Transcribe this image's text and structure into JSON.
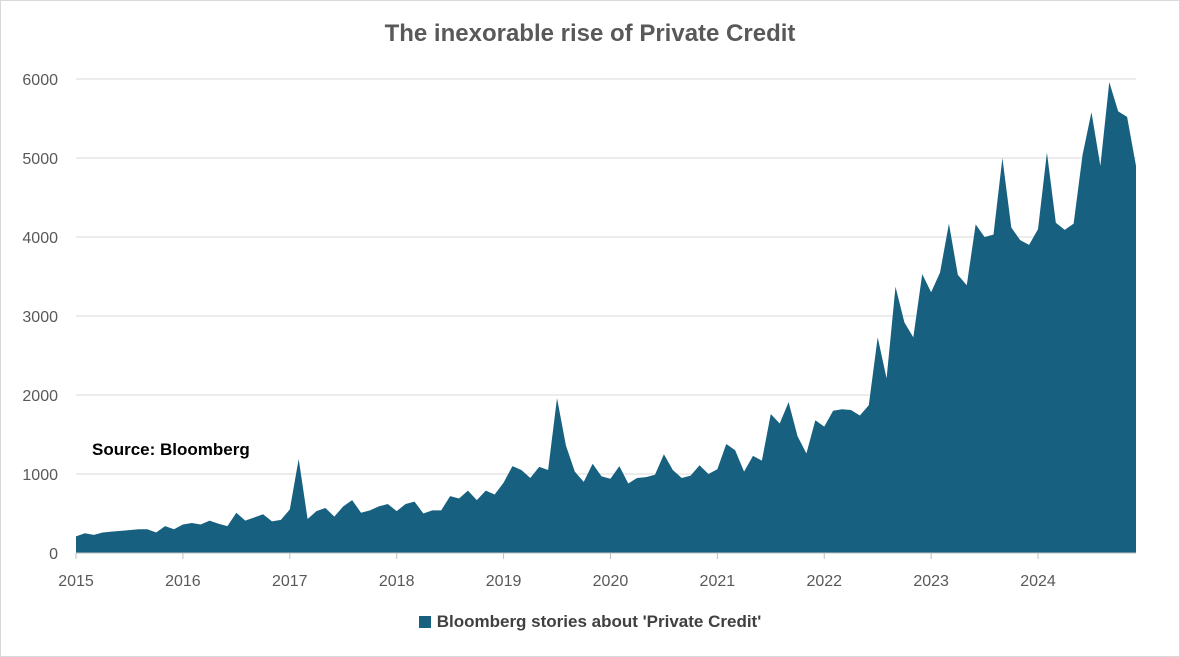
{
  "chart_data": {
    "type": "area",
    "title": "The inexorable rise of Private Credit",
    "annotation": "Source: Bloomberg",
    "xlabel": "",
    "ylabel": "",
    "ylim": [
      0,
      6000
    ],
    "yticks": [
      0,
      1000,
      2000,
      3000,
      4000,
      5000,
      6000
    ],
    "xlim": [
      "2015-01",
      "2024-12"
    ],
    "xticks": [
      "2015",
      "2016",
      "2017",
      "2018",
      "2019",
      "2020",
      "2021",
      "2022",
      "2023",
      "2024"
    ],
    "grid": "horizontal",
    "legend_position": "bottom",
    "color": "#17607f",
    "series": [
      {
        "name": "Bloomberg stories about 'Private Credit'",
        "x": [
          "2015-01",
          "2015-02",
          "2015-03",
          "2015-04",
          "2015-05",
          "2015-06",
          "2015-07",
          "2015-08",
          "2015-09",
          "2015-10",
          "2015-11",
          "2015-12",
          "2016-01",
          "2016-02",
          "2016-03",
          "2016-04",
          "2016-05",
          "2016-06",
          "2016-07",
          "2016-08",
          "2016-09",
          "2016-10",
          "2016-11",
          "2016-12",
          "2017-01",
          "2017-02",
          "2017-03",
          "2017-04",
          "2017-05",
          "2017-06",
          "2017-07",
          "2017-08",
          "2017-09",
          "2017-10",
          "2017-11",
          "2017-12",
          "2018-01",
          "2018-02",
          "2018-03",
          "2018-04",
          "2018-05",
          "2018-06",
          "2018-07",
          "2018-08",
          "2018-09",
          "2018-10",
          "2018-11",
          "2018-12",
          "2019-01",
          "2019-02",
          "2019-03",
          "2019-04",
          "2019-05",
          "2019-06",
          "2019-07",
          "2019-08",
          "2019-09",
          "2019-10",
          "2019-11",
          "2019-12",
          "2020-01",
          "2020-02",
          "2020-03",
          "2020-04",
          "2020-05",
          "2020-06",
          "2020-07",
          "2020-08",
          "2020-09",
          "2020-10",
          "2020-11",
          "2020-12",
          "2021-01",
          "2021-02",
          "2021-03",
          "2021-04",
          "2021-05",
          "2021-06",
          "2021-07",
          "2021-08",
          "2021-09",
          "2021-10",
          "2021-11",
          "2021-12",
          "2022-01",
          "2022-02",
          "2022-03",
          "2022-04",
          "2022-05",
          "2022-06",
          "2022-07",
          "2022-08",
          "2022-09",
          "2022-10",
          "2022-11",
          "2022-12",
          "2023-01",
          "2023-02",
          "2023-03",
          "2023-04",
          "2023-05",
          "2023-06",
          "2023-07",
          "2023-08",
          "2023-09",
          "2023-10",
          "2023-11",
          "2023-12",
          "2024-01",
          "2024-02",
          "2024-03",
          "2024-04",
          "2024-05",
          "2024-06",
          "2024-07",
          "2024-08",
          "2024-09",
          "2024-10",
          "2024-11",
          "2024-12"
        ],
        "values": [
          210,
          250,
          230,
          260,
          270,
          280,
          290,
          300,
          300,
          260,
          340,
          300,
          360,
          380,
          360,
          410,
          370,
          340,
          510,
          410,
          450,
          490,
          400,
          420,
          550,
          1190,
          430,
          530,
          570,
          460,
          590,
          670,
          510,
          540,
          590,
          620,
          530,
          620,
          650,
          500,
          540,
          540,
          720,
          690,
          790,
          670,
          790,
          740,
          890,
          1100,
          1050,
          950,
          1090,
          1050,
          1960,
          1360,
          1030,
          900,
          1130,
          970,
          940,
          1100,
          880,
          950,
          960,
          990,
          1250,
          1050,
          950,
          980,
          1110,
          1000,
          1060,
          1380,
          1300,
          1030,
          1230,
          1170,
          1760,
          1640,
          1910,
          1480,
          1260,
          1680,
          1600,
          1800,
          1820,
          1810,
          1740,
          1870,
          2730,
          2210,
          3370,
          2920,
          2730,
          3530,
          3300,
          3550,
          4170,
          3520,
          3390,
          4160,
          4000,
          4030,
          5000,
          4120,
          3960,
          3900,
          4100,
          5070,
          4180,
          4090,
          4170,
          5040,
          5580,
          4900,
          5960,
          5590,
          5520,
          4900
        ]
      }
    ]
  }
}
